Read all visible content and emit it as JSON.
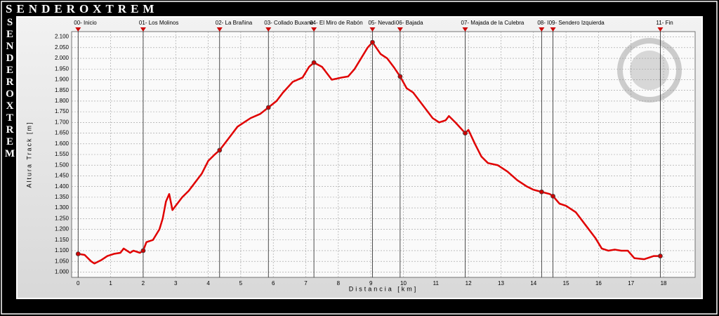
{
  "brand": "SENDEROXTREM",
  "chart_data": {
    "type": "line",
    "x_label": "Distancia [km]",
    "y_label": "Altura Track [m]",
    "x": [
      0,
      0.2,
      0.4,
      0.5,
      0.7,
      0.9,
      1.1,
      1.3,
      1.4,
      1.5,
      1.6,
      1.7,
      1.9,
      2.0,
      2.1,
      2.3,
      2.5,
      2.6,
      2.7,
      2.8,
      2.9,
      3.0,
      3.2,
      3.4,
      3.6,
      3.8,
      4.0,
      4.2,
      4.35,
      4.6,
      4.9,
      5.1,
      5.3,
      5.6,
      5.85,
      6.1,
      6.3,
      6.6,
      6.9,
      7.1,
      7.25,
      7.5,
      7.8,
      8.1,
      8.3,
      8.5,
      8.7,
      8.9,
      9.05,
      9.3,
      9.5,
      9.7,
      9.9,
      10.1,
      10.3,
      10.6,
      10.9,
      11.1,
      11.3,
      11.4,
      11.6,
      11.9,
      12.0,
      12.2,
      12.4,
      12.6,
      12.9,
      13.2,
      13.5,
      13.8,
      14.0,
      14.25,
      14.5,
      14.6,
      14.8,
      15.0,
      15.3,
      15.6,
      15.9,
      16.1,
      16.3,
      16.5,
      16.7,
      16.9,
      17.1,
      17.4,
      17.7,
      17.9
    ],
    "series": [
      {
        "color": "#e00000",
        "values": [
          1085,
          1080,
          1050,
          1040,
          1055,
          1075,
          1085,
          1090,
          1110,
          1100,
          1090,
          1100,
          1090,
          1100,
          1140,
          1150,
          1200,
          1250,
          1330,
          1365,
          1290,
          1310,
          1350,
          1380,
          1420,
          1460,
          1520,
          1550,
          1570,
          1620,
          1680,
          1700,
          1720,
          1740,
          1770,
          1800,
          1840,
          1890,
          1910,
          1960,
          1980,
          1960,
          1900,
          1910,
          1915,
          1950,
          2000,
          2050,
          2075,
          2020,
          2000,
          1960,
          1915,
          1860,
          1840,
          1780,
          1720,
          1700,
          1710,
          1730,
          1700,
          1650,
          1665,
          1600,
          1540,
          1510,
          1500,
          1470,
          1430,
          1400,
          1385,
          1375,
          1365,
          1355,
          1320,
          1310,
          1280,
          1220,
          1160,
          1110,
          1100,
          1105,
          1100,
          1100,
          1065,
          1060,
          1075,
          1075
        ]
      }
    ],
    "waypoints": {
      "labels": [
        "00- Inicio",
        "01- Los Molinos",
        "02- La Brañina",
        "03- Collado Buxane",
        "04- El Miro de Rabón",
        "05- Nevadi",
        "06- Bajada",
        "07- Majada de la Culebra",
        "08- I",
        "09- Sendero Izquierda",
        "11- Fin"
      ],
      "x": [
        0,
        2.0,
        4.35,
        5.85,
        7.25,
        9.05,
        9.9,
        11.9,
        14.25,
        14.6,
        17.9
      ],
      "values": [
        1085,
        1100,
        1570,
        1770,
        1980,
        2075,
        1915,
        1650,
        1375,
        1355,
        1075
      ],
      "color": "#cc0000"
    },
    "xlim": [
      -0.2,
      18.97
    ],
    "xticks": [
      0,
      1,
      2,
      3,
      4,
      5,
      6,
      7,
      8,
      9,
      10,
      11,
      12,
      13,
      14,
      15,
      16,
      17,
      18
    ],
    "ylim": [
      975,
      2125
    ],
    "yticks": [
      {
        "value": 1000,
        "label": "1.000"
      },
      {
        "value": 1050,
        "label": "1.050"
      },
      {
        "value": 1100,
        "label": "1.100"
      },
      {
        "value": 1150,
        "label": "1.150"
      },
      {
        "value": 1200,
        "label": "1.200"
      },
      {
        "value": 1250,
        "label": "1.250"
      },
      {
        "value": 1300,
        "label": "1.300"
      },
      {
        "value": 1350,
        "label": "1.350"
      },
      {
        "value": 1400,
        "label": "1.400"
      },
      {
        "value": 1450,
        "label": "1.450"
      },
      {
        "value": 1500,
        "label": "1.500"
      },
      {
        "value": 1550,
        "label": "1.550"
      },
      {
        "value": 1600,
        "label": "1.600"
      },
      {
        "value": 1650,
        "label": "1.650"
      },
      {
        "value": 1700,
        "label": "1.700"
      },
      {
        "value": 1750,
        "label": "1.750"
      },
      {
        "value": 1800,
        "label": "1.800"
      },
      {
        "value": 1850,
        "label": "1.850"
      },
      {
        "value": 1900,
        "label": "1.900"
      },
      {
        "value": 1950,
        "label": "1.950"
      },
      {
        "value": 2000,
        "label": "2.000"
      },
      {
        "value": 2050,
        "label": "2.050"
      },
      {
        "value": 2100,
        "label": "2.100"
      }
    ],
    "grid": true
  }
}
